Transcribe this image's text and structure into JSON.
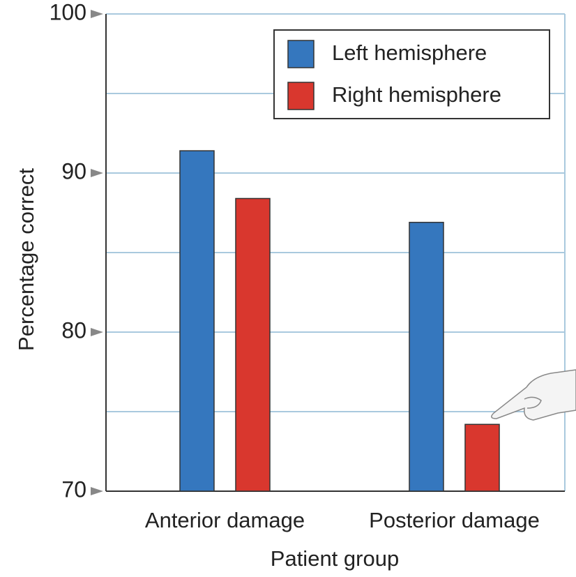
{
  "chart_data": {
    "type": "bar",
    "x_label": "Patient group",
    "y_label": "Percentage correct",
    "categories": [
      "Anterior damage",
      "Posterior damage"
    ],
    "series": [
      {
        "name": "Left hemisphere",
        "color": "#3577be",
        "values": [
          91.4,
          86.9
        ]
      },
      {
        "name": "Right hemisphere",
        "color": "#d9372e",
        "values": [
          88.4,
          74.2
        ]
      }
    ],
    "ylim": [
      70,
      100
    ],
    "yticks": [
      70,
      80,
      90,
      100
    ],
    "minor_yticks": [
      75,
      85,
      95
    ],
    "grid": true,
    "legend": "upper right"
  }
}
